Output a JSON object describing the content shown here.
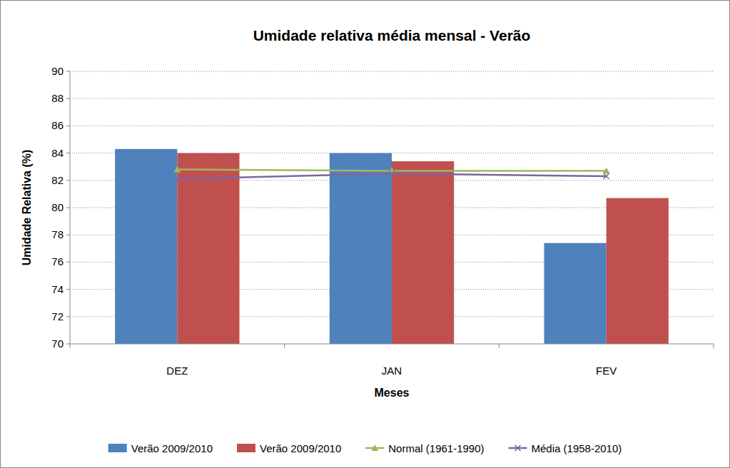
{
  "chart_data": {
    "type": "bar",
    "title": "Umidade relativa média mensal - Verão",
    "x_label": "Meses",
    "y_label": "Umidade Relativa (%)",
    "categories": [
      "DEZ",
      "JAN",
      "FEV"
    ],
    "series": [
      {
        "name": "Verão 2009/2010",
        "type": "bar",
        "color": "#4f81bd",
        "values": [
          84.3,
          84.0,
          77.4
        ]
      },
      {
        "name": "Verão 2009/2010",
        "type": "bar",
        "color": "#c0504d",
        "values": [
          84.0,
          83.4,
          80.7
        ]
      },
      {
        "name": "Normal (1961-1990)",
        "type": "line",
        "color": "#9bbb59",
        "marker": "triangle",
        "values": [
          82.8,
          82.7,
          82.7
        ]
      },
      {
        "name": "Média (1958-2010)",
        "type": "line",
        "color": "#8064a2",
        "marker": "x",
        "values": [
          82.1,
          82.5,
          82.3
        ]
      }
    ],
    "ylim": [
      70,
      90
    ],
    "yticks": [
      70,
      72,
      74,
      76,
      78,
      80,
      82,
      84,
      86,
      88,
      90
    ],
    "grid": true,
    "legend": "bottom"
  }
}
